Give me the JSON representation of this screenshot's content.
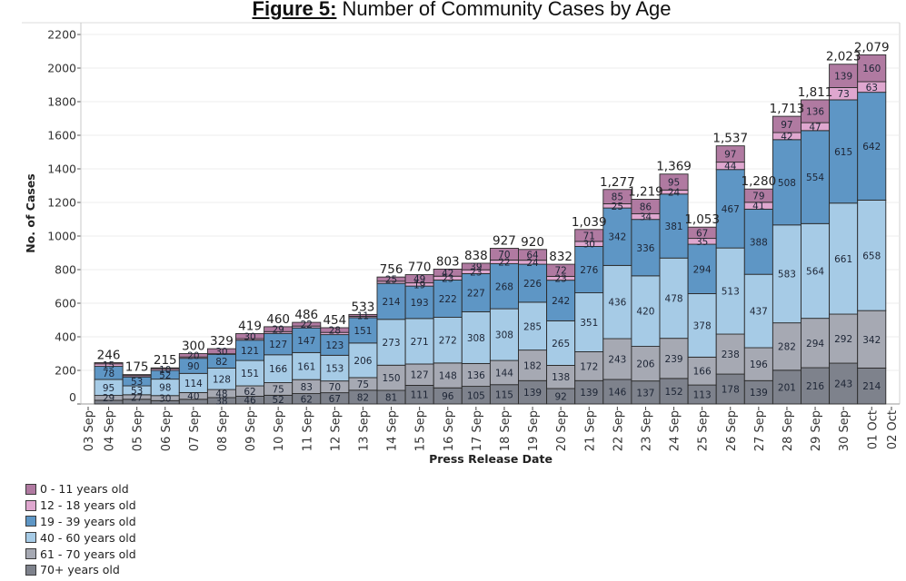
{
  "chart_data": {
    "type": "bar",
    "stacked": true,
    "title_prefix": "Figure 5:",
    "title": "Number of Community Cases by Age",
    "xlabel": "Press Release Date",
    "ylabel": "No. of Cases",
    "ylim": [
      0,
      2200
    ],
    "yticks": [
      0,
      200,
      400,
      600,
      800,
      1000,
      1200,
      1400,
      1600,
      1800,
      2000,
      2200
    ],
    "grid": true,
    "legend": "bottom-left",
    "x_tick_labels": [
      "03 Sep",
      "04 Sep",
      "05 Sep",
      "06 Sep",
      "07 Sep",
      "08 Sep",
      "09 Sep",
      "10 Sep",
      "11 Sep",
      "12 Sep",
      "13 Sep",
      "14 Sep",
      "15 Sep",
      "16 Sep",
      "17 Sep",
      "18 Sep",
      "19 Sep",
      "20 Sep",
      "21 Sep",
      "22 Sep",
      "23 Sep",
      "24 Sep",
      "25 Sep",
      "26 Sep",
      "27 Sep",
      "28 Sep",
      "29 Sep",
      "30 Sep",
      "01 Oct",
      "02 Oct"
    ],
    "categories": [
      "04 Sep",
      "05 Sep",
      "06 Sep",
      "07 Sep",
      "08 Sep",
      "09 Sep",
      "10 Sep",
      "11 Sep",
      "12 Sep",
      "13 Sep",
      "14 Sep",
      "15 Sep",
      "16 Sep",
      "17 Sep",
      "18 Sep",
      "19 Sep",
      "20 Sep",
      "21 Sep",
      "22 Sep",
      "23 Sep",
      "24 Sep",
      "25 Sep",
      "26 Sep",
      "27 Sep",
      "28 Sep",
      "29 Sep",
      "30 Sep",
      "01 Oct"
    ],
    "totals": [
      246,
      175,
      215,
      300,
      329,
      419,
      460,
      486,
      454,
      533,
      756,
      770,
      803,
      838,
      927,
      920,
      832,
      1039,
      1277,
      1219,
      1369,
      1053,
      1537,
      1280,
      1713,
      1811,
      2023,
      2079
    ],
    "total_labels": [
      "246",
      "175",
      "215",
      "300",
      "329",
      "419",
      "460",
      "486",
      "454",
      "533",
      "756",
      "770",
      "803",
      "838",
      "927",
      "920",
      "832",
      "1,039",
      "1,277",
      "1,219",
      "1,369",
      "1,053",
      "1,537",
      "1,280",
      "1,713",
      "1,811",
      "2,023",
      "2,079"
    ],
    "series": [
      {
        "name": "0 - 11 years old",
        "color": "#b07aa1",
        "values": [
          7,
          6,
          5,
          20,
          30,
          30,
          29,
          22,
          28,
          11,
          25,
          49,
          42,
          39,
          70,
          64,
          72,
          71,
          85,
          86,
          95,
          67,
          97,
          79,
          97,
          136,
          139,
          160
        ]
      },
      {
        "name": "12 - 18 years old",
        "color": "#dfa7cf",
        "values": [
          15,
          8,
          10,
          8,
          3,
          9,
          11,
          11,
          13,
          8,
          13,
          19,
          23,
          23,
          22,
          24,
          23,
          30,
          25,
          34,
          24,
          35,
          44,
          41,
          42,
          47,
          73,
          63
        ]
      },
      {
        "name": "19 - 39 years old",
        "color": "#5e96c5",
        "values": [
          78,
          53,
          52,
          90,
          82,
          121,
          127,
          147,
          123,
          151,
          214,
          193,
          222,
          227,
          268,
          226,
          242,
          276,
          342,
          336,
          381,
          294,
          467,
          388,
          508,
          554,
          615,
          642
        ]
      },
      {
        "name": "40 - 60 years old",
        "color": "#a6cbe6",
        "values": [
          95,
          53,
          98,
          114,
          128,
          151,
          166,
          161,
          153,
          206,
          273,
          271,
          272,
          308,
          308,
          285,
          265,
          351,
          436,
          420,
          478,
          378,
          513,
          437,
          583,
          564,
          661,
          658
        ]
      },
      {
        "name": "61 - 70 years old",
        "color": "#a6a9b3",
        "values": [
          29,
          27,
          30,
          40,
          48,
          62,
          75,
          83,
          70,
          75,
          150,
          127,
          148,
          136,
          144,
          182,
          138,
          172,
          243,
          206,
          239,
          166,
          238,
          196,
          282,
          294,
          292,
          342
        ]
      },
      {
        "name": "70+ years old",
        "color": "#7e828c",
        "values": [
          22,
          28,
          20,
          28,
          38,
          46,
          52,
          62,
          67,
          82,
          81,
          111,
          96,
          105,
          115,
          139,
          92,
          139,
          146,
          137,
          152,
          113,
          178,
          139,
          201,
          216,
          243,
          214
        ]
      }
    ],
    "unlabeled_segments": [
      [
        0,
        0
      ],
      [
        0,
        5
      ],
      [
        1,
        0
      ],
      [
        1,
        1
      ],
      [
        1,
        5
      ],
      [
        2,
        0
      ],
      [
        2,
        5
      ],
      [
        3,
        1
      ],
      [
        3,
        5
      ],
      [
        4,
        1
      ],
      [
        5,
        1
      ],
      [
        6,
        1
      ],
      [
        7,
        1
      ],
      [
        8,
        1
      ],
      [
        9,
        1
      ],
      [
        10,
        1
      ]
    ]
  }
}
